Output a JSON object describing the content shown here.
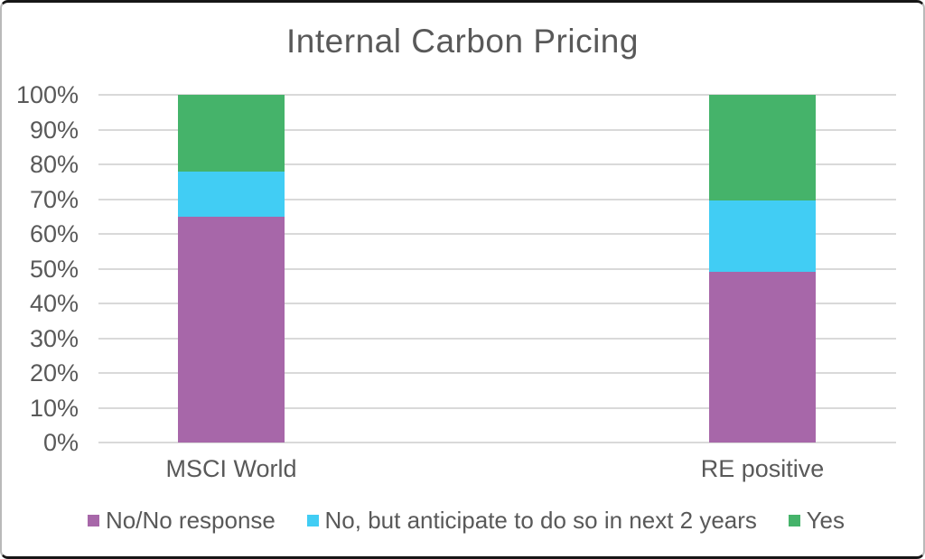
{
  "chart_data": {
    "type": "bar",
    "stacked": true,
    "title": "Internal Carbon Pricing",
    "categories": [
      "MSCI World",
      "RE positive"
    ],
    "series": [
      {
        "name": "No/No response",
        "color": "#A767A9",
        "values": [
          65,
          49
        ]
      },
      {
        "name": "No, but anticipate to do so in next 2 years",
        "color": "#41CDF4",
        "values": [
          13,
          20.5
        ]
      },
      {
        "name": "Yes",
        "color": "#45B36A",
        "values": [
          22,
          30.5
        ]
      }
    ],
    "ylim": [
      0,
      100
    ],
    "ytick_values": [
      0,
      10,
      20,
      30,
      40,
      50,
      60,
      70,
      80,
      90,
      100
    ],
    "ytick_labels": [
      "0%",
      "10%",
      "20%",
      "30%",
      "40%",
      "50%",
      "60%",
      "70%",
      "80%",
      "90%",
      "100%"
    ],
    "xlabel": "",
    "ylabel": "",
    "grid": "horizontal",
    "legend_position": "bottom",
    "colors": {
      "text": "#595959",
      "gridline": "#D9D9D9",
      "background": "#FFFFFF",
      "frame_border": "#161616"
    }
  }
}
